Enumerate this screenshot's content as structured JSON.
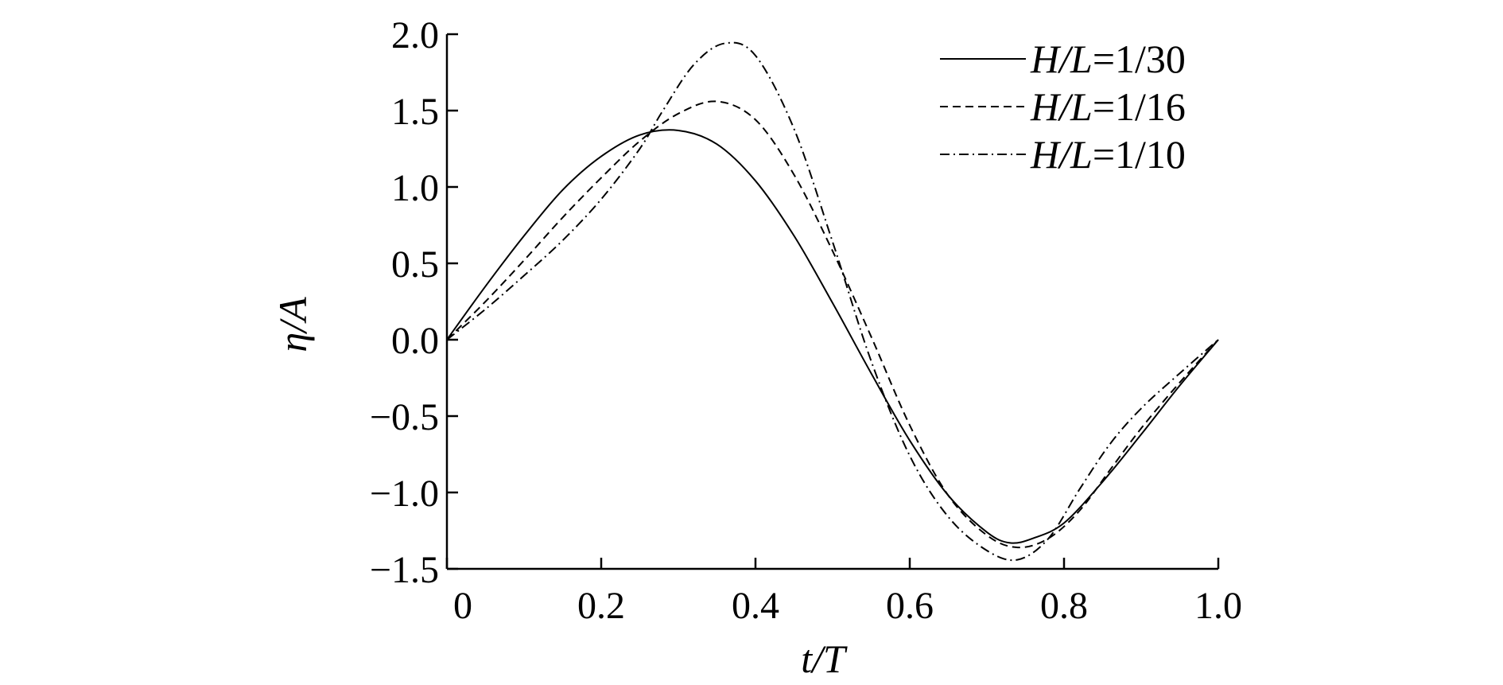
{
  "chart_data": {
    "type": "line",
    "title": "",
    "xlabel": "t/T",
    "ylabel": "η/A",
    "xlim": [
      0,
      1.0
    ],
    "ylim": [
      -1.5,
      2.0
    ],
    "x_ticks": [
      "0",
      "0.2",
      "0.4",
      "0.6",
      "0.8",
      "1.0"
    ],
    "x_tick_values": [
      0,
      0.2,
      0.4,
      0.6,
      0.8,
      1.0
    ],
    "y_ticks": [
      "2.0",
      "1.5",
      "1.0",
      "0.5",
      "0.0",
      "−0.5",
      "−1.0",
      "−1.5"
    ],
    "y_tick_values": [
      2.0,
      1.5,
      1.0,
      0.5,
      0.0,
      -0.5,
      -1.0,
      -1.5
    ],
    "grid": false,
    "legend_position": "top-right",
    "series": [
      {
        "name": "H/L=1/30",
        "name_prefix": "H/L",
        "name_value": "=1/30",
        "dash": "solid",
        "x": [
          0,
          0.05,
          0.1,
          0.15,
          0.2,
          0.25,
          0.3,
          0.35,
          0.4,
          0.45,
          0.5,
          0.55,
          0.6,
          0.65,
          0.7,
          0.73,
          0.76,
          0.8,
          0.85,
          0.9,
          0.95,
          1.0
        ],
        "y": [
          0,
          0.35,
          0.68,
          0.98,
          1.2,
          1.34,
          1.37,
          1.28,
          1.04,
          0.68,
          0.24,
          -0.22,
          -0.66,
          -1.02,
          -1.26,
          -1.33,
          -1.3,
          -1.2,
          -0.93,
          -0.62,
          -0.3,
          0
        ]
      },
      {
        "name": "H/L=1/16",
        "name_prefix": "H/L",
        "name_value": "=1/16",
        "dash": "dashed",
        "x": [
          0,
          0.05,
          0.1,
          0.15,
          0.2,
          0.25,
          0.3,
          0.35,
          0.4,
          0.45,
          0.5,
          0.55,
          0.6,
          0.65,
          0.7,
          0.74,
          0.78,
          0.82,
          0.86,
          0.9,
          0.95,
          1.0
        ],
        "y": [
          0,
          0.25,
          0.52,
          0.8,
          1.06,
          1.3,
          1.48,
          1.56,
          1.44,
          1.08,
          0.58,
          0.02,
          -0.56,
          -1.02,
          -1.28,
          -1.36,
          -1.3,
          -1.12,
          -0.85,
          -0.58,
          -0.28,
          0
        ]
      },
      {
        "name": "H/L=1/10",
        "name_prefix": "H/L",
        "name_value": "=1/10",
        "dash": "dashdot",
        "x": [
          0,
          0.05,
          0.1,
          0.15,
          0.2,
          0.25,
          0.28,
          0.32,
          0.36,
          0.4,
          0.45,
          0.5,
          0.55,
          0.6,
          0.65,
          0.7,
          0.74,
          0.78,
          0.82,
          0.86,
          0.9,
          0.95,
          1.0
        ],
        "y": [
          0,
          0.2,
          0.42,
          0.65,
          0.92,
          1.25,
          1.5,
          1.8,
          1.94,
          1.86,
          1.38,
          0.64,
          -0.14,
          -0.76,
          -1.16,
          -1.38,
          -1.44,
          -1.3,
          -0.98,
          -0.68,
          -0.45,
          -0.22,
          0
        ]
      }
    ]
  }
}
